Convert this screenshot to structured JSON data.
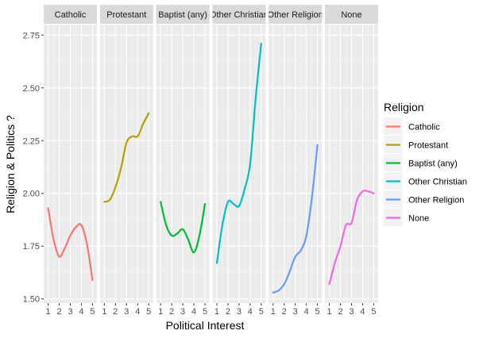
{
  "chart_data": {
    "type": "line",
    "facet_by": "Religion",
    "xlabel": "Political Interest",
    "ylabel": "Religion & Politics ?",
    "x_ticks": [
      1,
      2,
      3,
      4,
      5
    ],
    "y_ticks": [
      1.5,
      1.75,
      2.0,
      2.25,
      2.5,
      2.75
    ],
    "y_tick_labels": [
      "1.50",
      "1.75",
      "2.00",
      "2.25",
      "2.50",
      "2.75"
    ],
    "xlim": [
      0.6,
      5.4
    ],
    "ylim": [
      1.48,
      2.8
    ],
    "grid": true,
    "legend": {
      "title": "Religion",
      "position": "right"
    },
    "series": [
      {
        "name": "Catholic",
        "strip_label": "Catholic",
        "color": "#F8766D",
        "x": [
          1,
          1.5,
          2,
          2.5,
          3,
          3.5,
          4,
          4.5,
          5
        ],
        "y": [
          1.93,
          1.78,
          1.7,
          1.74,
          1.8,
          1.84,
          1.85,
          1.76,
          1.59
        ]
      },
      {
        "name": "Protestant",
        "strip_label": "Protestant",
        "color": "#B79F00",
        "x": [
          1,
          1.5,
          2,
          2.5,
          3,
          3.5,
          4,
          4.5,
          5
        ],
        "y": [
          1.96,
          1.97,
          2.03,
          2.12,
          2.24,
          2.27,
          2.27,
          2.33,
          2.38
        ]
      },
      {
        "name": "Baptist (any)",
        "strip_label": "Baptist (any)",
        "color": "#00BA38",
        "x": [
          1,
          1.5,
          2,
          2.5,
          3,
          3.5,
          4,
          4.5,
          5
        ],
        "y": [
          1.96,
          1.85,
          1.8,
          1.81,
          1.83,
          1.78,
          1.72,
          1.8,
          1.95
        ]
      },
      {
        "name": "Other Christian",
        "strip_label": "Other Christian",
        "color": "#00BFC4",
        "x": [
          1,
          1.5,
          2,
          2.5,
          3,
          3.5,
          4,
          4.5,
          5
        ],
        "y": [
          1.67,
          1.85,
          1.96,
          1.95,
          1.94,
          2.02,
          2.14,
          2.45,
          2.71
        ]
      },
      {
        "name": "Other Religion",
        "strip_label": "Other Religion",
        "color": "#619CFF",
        "x": [
          1,
          1.5,
          2,
          2.5,
          3,
          3.5,
          4,
          4.5,
          5
        ],
        "y": [
          1.53,
          1.54,
          1.57,
          1.63,
          1.7,
          1.73,
          1.8,
          1.98,
          2.23
        ]
      },
      {
        "name": "None",
        "strip_label": "None",
        "color": "#F564E3",
        "x": [
          1,
          1.5,
          2,
          2.5,
          3,
          3.5,
          4,
          4.5,
          5
        ],
        "y": [
          1.57,
          1.67,
          1.75,
          1.85,
          1.86,
          1.97,
          2.01,
          2.01,
          2.0
        ]
      }
    ]
  },
  "colors": {
    "panel_bg": "#EBEBEB",
    "strip_bg": "#D9D9D9",
    "grid_major": "#FFFFFF",
    "grid_minor": "#F5F5F5",
    "tick_text": "#4D4D4D"
  }
}
